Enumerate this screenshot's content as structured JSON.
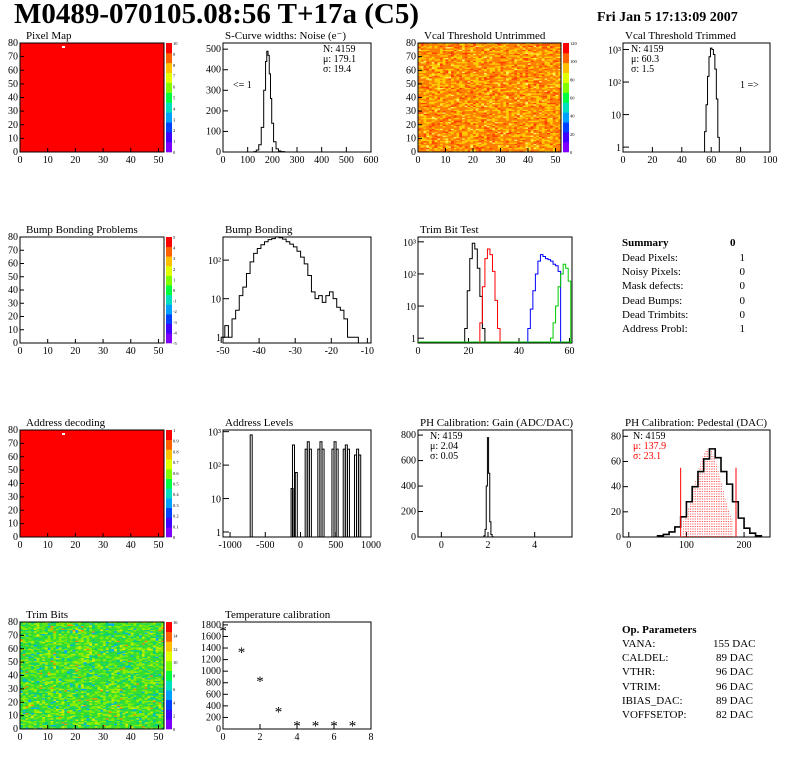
{
  "header": {
    "title": "M0489-070105.08:56 T+17a (C5)",
    "date": "Fri Jan  5 17:13:09 2007"
  },
  "colors": {
    "red": "#ff0000",
    "black": "#000000",
    "blue": "#0000ff",
    "green": "#00cc00"
  },
  "chart_data": [
    {
      "id": "pixel_map",
      "type": "heatmap",
      "title": "Pixel Map",
      "x_ticks": [
        "0",
        "10",
        "20",
        "30",
        "40",
        "50"
      ],
      "y_ticks": [
        "0",
        "10",
        "20",
        "30",
        "40",
        "50",
        "60",
        "70",
        "80"
      ],
      "xlim": [
        0,
        52
      ],
      "ylim": [
        0,
        80
      ],
      "fill": "uniform red (all pixels responding)",
      "colorbar_ticks": [
        "0",
        "1",
        "2",
        "3",
        "4",
        "5",
        "6",
        "7",
        "8",
        "9",
        "10"
      ]
    },
    {
      "id": "scurve",
      "type": "area",
      "title": "S-Curve widths: Noise (e⁻)",
      "x_ticks": [
        "0",
        "100",
        "200",
        "300",
        "400",
        "500",
        "600"
      ],
      "y_ticks": [
        "0",
        "100",
        "200",
        "300",
        "400",
        "500"
      ],
      "xlim": [
        0,
        600
      ],
      "ylim": [
        0,
        530
      ],
      "x": [
        130,
        140,
        150,
        160,
        170,
        175,
        180,
        185,
        190,
        195,
        200,
        210,
        220,
        230,
        240,
        260
      ],
      "values": [
        2,
        10,
        35,
        120,
        300,
        440,
        490,
        470,
        380,
        260,
        140,
        50,
        15,
        5,
        2,
        0
      ],
      "stats": [
        "N: 4159",
        "μ: 179.1",
        "σ: 19.4"
      ],
      "annotation": "<= 1"
    },
    {
      "id": "vcal_untrimmed",
      "type": "heatmap",
      "title": "Vcal Threshold Untrimmed",
      "x_ticks": [
        "0",
        "10",
        "20",
        "30",
        "40",
        "50"
      ],
      "y_ticks": [
        "0",
        "10",
        "20",
        "30",
        "40",
        "50",
        "60",
        "70",
        "80"
      ],
      "xlim": [
        0,
        52
      ],
      "ylim": [
        0,
        80
      ],
      "colorbar_ticks": [
        "0",
        "20",
        "40",
        "60",
        "80",
        "100",
        "120"
      ]
    },
    {
      "id": "vcal_trimmed",
      "type": "area",
      "title": "Vcal Threshold Trimmed",
      "log_y": true,
      "x_ticks": [
        "0",
        "20",
        "40",
        "60",
        "80",
        "100"
      ],
      "y_ticks": [
        "1",
        "10",
        "10²",
        "10³"
      ],
      "xlim": [
        0,
        100
      ],
      "x": [
        56,
        57,
        58,
        59,
        60,
        61,
        62,
        63,
        64,
        65
      ],
      "values": [
        3,
        20,
        150,
        600,
        1100,
        1000,
        700,
        250,
        30,
        2
      ],
      "stats": [
        "N: 4159",
        "μ: 60.3",
        "σ:   1.5"
      ],
      "annotation": "1 =>"
    },
    {
      "id": "bump_problems",
      "type": "heatmap",
      "title": "Bump Bonding Problems",
      "x_ticks": [
        "0",
        "10",
        "20",
        "30",
        "40",
        "50"
      ],
      "y_ticks": [
        "0",
        "10",
        "20",
        "30",
        "40",
        "50",
        "60",
        "70",
        "80"
      ],
      "xlim": [
        0,
        52
      ],
      "ylim": [
        0,
        80
      ],
      "fill": "empty",
      "colorbar_ticks": [
        "-5",
        "-4",
        "-3",
        "-2",
        "-1",
        "0",
        "1",
        "2",
        "3",
        "4",
        "5"
      ]
    },
    {
      "id": "bump_bonding",
      "type": "area",
      "title": "Bump Bonding",
      "log_y": true,
      "x_ticks": [
        "-50",
        "-40",
        "-30",
        "-20",
        "-10"
      ],
      "y_ticks": [
        "1",
        "10",
        "10²"
      ],
      "xlim": [
        -50,
        -9
      ],
      "x": [
        -50,
        -49,
        -48,
        -47,
        -46,
        -45,
        -44,
        -43,
        -42,
        -41,
        -40,
        -39,
        -38,
        -37,
        -36,
        -35,
        -34,
        -33,
        -32,
        -31,
        -30,
        -29,
        -28,
        -27,
        -26,
        -25,
        -24,
        -23,
        -22,
        -21,
        -20,
        -19,
        -18,
        -17,
        -16,
        -15,
        -14,
        -13
      ],
      "values": [
        1,
        2,
        1,
        3,
        5,
        12,
        20,
        45,
        90,
        150,
        200,
        250,
        300,
        340,
        360,
        400,
        380,
        350,
        300,
        260,
        220,
        170,
        120,
        80,
        40,
        15,
        10,
        12,
        8,
        12,
        15,
        10,
        6,
        5,
        3,
        1,
        1,
        1
      ]
    },
    {
      "id": "trim_bit_test",
      "type": "line",
      "title": "Trim Bit Test",
      "log_y": true,
      "x_ticks": [
        "0",
        "20",
        "40",
        "60"
      ],
      "y_ticks": [
        "1",
        "10",
        "10²",
        "10³"
      ],
      "xlim": [
        0,
        61
      ],
      "series": [
        {
          "color": "#000000",
          "x": [
            19,
            20,
            21,
            22,
            23,
            24,
            25,
            26
          ],
          "values": [
            2,
            30,
            300,
            900,
            600,
            150,
            20,
            2
          ]
        },
        {
          "color": "#ff0000",
          "x": [
            25,
            26,
            27,
            28,
            29,
            30,
            31,
            32
          ],
          "values": [
            3,
            40,
            300,
            600,
            400,
            120,
            15,
            2
          ]
        },
        {
          "color": "#0000ff",
          "x": [
            44,
            45,
            46,
            47,
            48,
            49,
            50,
            51,
            52,
            53,
            54,
            55,
            56
          ],
          "values": [
            2,
            8,
            30,
            100,
            250,
            400,
            350,
            300,
            280,
            250,
            200,
            180,
            120
          ]
        },
        {
          "color": "#00cc00",
          "x": [
            53,
            54,
            55,
            56,
            57,
            58,
            59,
            60
          ],
          "values": [
            1,
            3,
            10,
            40,
            100,
            200,
            150,
            60
          ]
        }
      ]
    },
    {
      "id": "address_decoding",
      "type": "heatmap",
      "title": "Address decoding",
      "x_ticks": [
        "0",
        "10",
        "20",
        "30",
        "40",
        "50"
      ],
      "y_ticks": [
        "0",
        "10",
        "20",
        "30",
        "40",
        "50",
        "60",
        "70",
        "80"
      ],
      "xlim": [
        0,
        52
      ],
      "ylim": [
        0,
        80
      ],
      "fill": "uniform red",
      "colorbar_ticks": [
        "0",
        "0.1",
        "0.2",
        "0.3",
        "0.4",
        "0.5",
        "0.6",
        "0.7",
        "0.8",
        "0.9",
        "1"
      ]
    },
    {
      "id": "address_levels",
      "type": "bar",
      "title": "Address Levels",
      "log_y": true,
      "x_ticks": [
        "-1000",
        "-500",
        "0",
        "500",
        "1000"
      ],
      "y_ticks": [
        "1",
        "10",
        "10²",
        "10³"
      ],
      "xlim": [
        -1100,
        1000
      ],
      "x": [
        -700,
        -120,
        -100,
        -60,
        80,
        110,
        140,
        260,
        290,
        320,
        460,
        490,
        520,
        620,
        650,
        680,
        780,
        810,
        840
      ],
      "values": [
        800,
        20,
        400,
        60,
        300,
        500,
        300,
        300,
        500,
        300,
        300,
        500,
        300,
        300,
        400,
        300,
        200,
        300,
        200
      ]
    },
    {
      "id": "ph_gain",
      "type": "area",
      "title": "PH Calibration: Gain (ADC/DAC)",
      "x_ticks": [
        "0",
        "2",
        "4"
      ],
      "y_ticks": [
        "0",
        "200",
        "400",
        "600",
        "800"
      ],
      "xlim": [
        -1,
        5.6
      ],
      "ylim": [
        0,
        840
      ],
      "x": [
        1.85,
        1.9,
        1.95,
        2.0,
        2.05,
        2.1,
        2.15,
        2.2
      ],
      "values": [
        10,
        60,
        400,
        780,
        500,
        120,
        20,
        2
      ],
      "stats": [
        "N: 4159",
        "μ: 2.04",
        "σ: 0.05"
      ]
    },
    {
      "id": "ph_pedestal",
      "type": "area",
      "title": "PH Calibration: Pedestal (DAC)",
      "x_ticks": [
        "0",
        "100",
        "200"
      ],
      "y_ticks": [
        "0",
        "20",
        "40",
        "60",
        "80"
      ],
      "xlim": [
        -10,
        245
      ],
      "ylim": [
        0,
        85
      ],
      "x": [
        55,
        65,
        75,
        85,
        95,
        105,
        115,
        125,
        135,
        145,
        155,
        165,
        175,
        185,
        195,
        205,
        215,
        225
      ],
      "values": [
        1,
        2,
        4,
        8,
        16,
        28,
        40,
        52,
        62,
        70,
        63,
        52,
        42,
        28,
        15,
        7,
        3,
        1
      ],
      "stats": [
        "N: 4159",
        "μ: 137.9",
        "σ: 23.1"
      ]
    },
    {
      "id": "trim_bits",
      "type": "heatmap",
      "title": "Trim Bits",
      "x_ticks": [
        "0",
        "10",
        "20",
        "30",
        "40",
        "50"
      ],
      "y_ticks": [
        "0",
        "10",
        "20",
        "30",
        "40",
        "50",
        "60",
        "70",
        "80"
      ],
      "xlim": [
        0,
        52
      ],
      "ylim": [
        0,
        80
      ],
      "colorbar_ticks": [
        "0",
        "2",
        "4",
        "6",
        "8",
        "10",
        "12",
        "14",
        "16"
      ]
    },
    {
      "id": "temperature_calibration",
      "type": "scatter",
      "title": "Temperature calibration",
      "x_ticks": [
        "0",
        "2",
        "4",
        "6",
        "8"
      ],
      "y_ticks": [
        "0",
        "200",
        "400",
        "600",
        "800",
        "1000",
        "1200",
        "1400",
        "1600",
        "1800"
      ],
      "xlim": [
        0,
        8
      ],
      "ylim": [
        0,
        1850
      ],
      "x": [
        0,
        1,
        2,
        3,
        4,
        5,
        6,
        7
      ],
      "values": [
        1700,
        1330,
        830,
        300,
        60,
        60,
        60,
        60
      ]
    }
  ],
  "summary": {
    "title": "Summary",
    "total": "0",
    "rows": [
      {
        "label": "Dead Pixels:",
        "value": "1"
      },
      {
        "label": "Noisy Pixels:",
        "value": "0"
      },
      {
        "label": "Mask defects:",
        "value": "0"
      },
      {
        "label": "Dead Bumps:",
        "value": "0"
      },
      {
        "label": "Dead Trimbits:",
        "value": "0"
      },
      {
        "label": "Address Probl:",
        "value": "1"
      }
    ]
  },
  "op_params": {
    "title": "Op. Parameters",
    "rows": [
      {
        "label": "VANA:",
        "value": "155 DAC"
      },
      {
        "label": "CALDEL:",
        "value": "89 DAC"
      },
      {
        "label": "VTHR:",
        "value": "96 DAC"
      },
      {
        "label": "VTRIM:",
        "value": "96 DAC"
      },
      {
        "label": "IBIAS_DAC:",
        "value": "89 DAC"
      },
      {
        "label": "VOFFSETOP:",
        "value": "82 DAC"
      }
    ]
  }
}
